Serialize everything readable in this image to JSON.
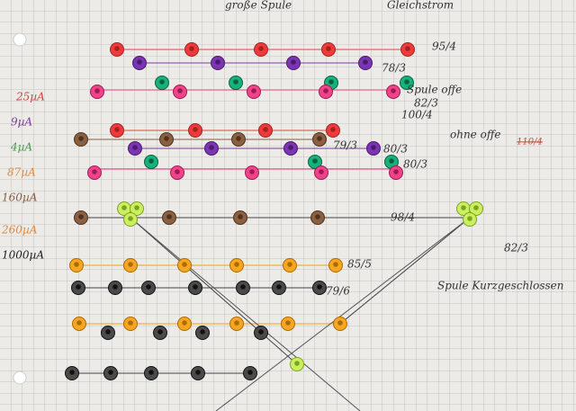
{
  "header": {
    "title": "große Spule",
    "subtitle": "Gleichstrom"
  },
  "notes": [
    "95/4",
    "78/3",
    "Spule offe",
    "82/3",
    "100/4",
    "ohne offe",
    "79/3",
    "80/3",
    "80/3",
    "98/4",
    "82/3",
    "85/5",
    "79/6",
    "Spule Kurzgeschlossen"
  ],
  "struck_note": "110/4",
  "legend": [
    "25µA",
    "9µA",
    "4µA",
    "87µA",
    "160µA",
    "260µA",
    "1000µA"
  ]
}
